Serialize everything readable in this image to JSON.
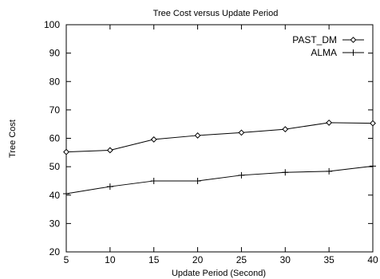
{
  "chart_data": {
    "type": "line",
    "title": "Tree Cost versus Update Period",
    "xlabel": "Update Period (Second)",
    "ylabel": "Tree Cost",
    "x": [
      5,
      10,
      15,
      20,
      25,
      30,
      35,
      40
    ],
    "xlim": [
      5,
      40
    ],
    "ylim": [
      20,
      100
    ],
    "xticks": [
      "5",
      "10",
      "15",
      "20",
      "25",
      "30",
      "35",
      "40"
    ],
    "yticks": [
      "20",
      "30",
      "40",
      "50",
      "60",
      "70",
      "80",
      "90",
      "100"
    ],
    "grid": false,
    "legend_position": "top-right",
    "series": [
      {
        "name": "PAST_DM",
        "marker": "diamond",
        "values": [
          55.2,
          55.8,
          59.6,
          61.0,
          62.0,
          63.2,
          65.5,
          65.3
        ]
      },
      {
        "name": "ALMA",
        "marker": "plus",
        "values": [
          40.5,
          43.0,
          45.0,
          45.0,
          47.0,
          48.0,
          48.4,
          50.2
        ]
      }
    ]
  }
}
